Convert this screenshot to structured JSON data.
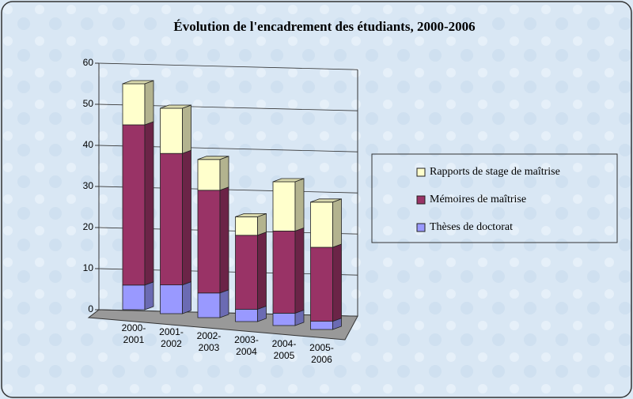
{
  "chart_data": {
    "type": "bar3d_stacked",
    "title": "Évolution de l'encadrement des étudiants, 2000-2006",
    "categories": [
      "2000-2001",
      "2001-2002",
      "2002-2003",
      "2003-2004",
      "2004-2005",
      "2005-2006"
    ],
    "series": [
      {
        "name": "Thèses de doctorat",
        "color": "#9999ff",
        "values": [
          6,
          7,
          6,
          3,
          3,
          2
        ]
      },
      {
        "name": "Mémoires de maîtrise",
        "color": "#993366",
        "values": [
          39,
          32,
          25,
          18,
          20,
          18
        ]
      },
      {
        "name": "Rapports de stage de maîtrise",
        "color": "#ffffcc",
        "values": [
          10,
          11,
          7.5,
          4.5,
          12,
          11
        ]
      }
    ],
    "ylim": [
      0,
      60
    ],
    "yticks": [
      0,
      10,
      20,
      30,
      40,
      50,
      60
    ],
    "grid": true,
    "legend": "right"
  }
}
